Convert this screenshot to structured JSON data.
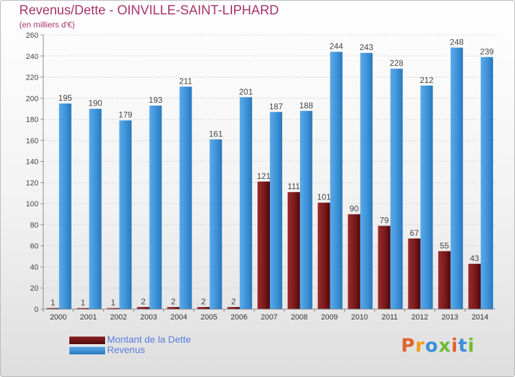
{
  "title": "Revenus/Dette - OINVILLE-SAINT-LIPHARD",
  "subtitle": "(en milliers d'€)",
  "brand": {
    "letters": [
      "P",
      "r",
      "o",
      "x",
      "i",
      "t",
      "i"
    ],
    "colors": [
      "#e0622a",
      "#f29b1c",
      "#3a8fd8",
      "#6dbb2f",
      "#e0622a",
      "#3a8fd8",
      "#6dbb2f"
    ]
  },
  "legend": [
    {
      "label": "Montant de la Dette",
      "color": "#6b0f12"
    },
    {
      "label": "Revenus",
      "color": "#3d92d8"
    }
  ],
  "chart_data": {
    "type": "bar",
    "title": "Revenus/Dette - OINVILLE-SAINT-LIPHARD",
    "subtitle": "(en milliers d'€)",
    "categories": [
      "2000",
      "2001",
      "2002",
      "2003",
      "2004",
      "2005",
      "2006",
      "2007",
      "2008",
      "2009",
      "2010",
      "2011",
      "2012",
      "2013",
      "2014"
    ],
    "series": [
      {
        "name": "Montant de la Dette",
        "color": "#7a1a1c",
        "values": [
          1,
          1,
          1,
          2,
          2,
          2,
          2,
          121,
          111,
          101,
          90,
          79,
          67,
          55,
          43
        ]
      },
      {
        "name": "Revenus",
        "color": "#3d92d8",
        "values": [
          195,
          190,
          179,
          193,
          211,
          161,
          201,
          187,
          188,
          244,
          243,
          228,
          212,
          248,
          239
        ]
      }
    ],
    "ylim": [
      0,
      260
    ],
    "yticks": [
      0,
      20,
      40,
      60,
      80,
      100,
      120,
      140,
      160,
      180,
      200,
      220,
      240,
      260
    ],
    "grid": true,
    "legend_position": "bottom-left"
  }
}
